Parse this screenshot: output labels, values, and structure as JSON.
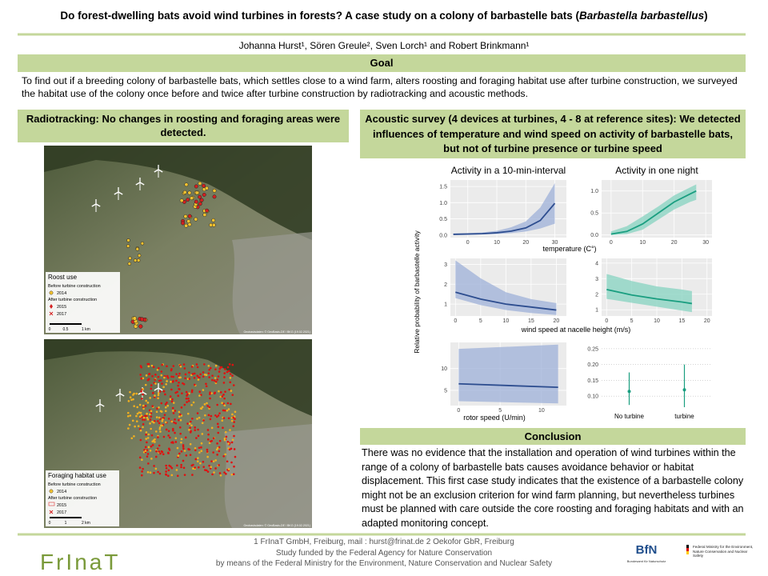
{
  "title": {
    "text": "Do forest-dwelling bats avoid wind turbines in forests? A case study on a colony of barbastelle bats (",
    "species": "Barbastella barbastellus",
    "end": ")"
  },
  "authors": "Johanna Hurst¹, Sören Greule², Sven Lorch¹ and Robert Brinkmann¹",
  "goal": {
    "heading": "Goal",
    "text": "To find out if a breeding colony of barbastelle bats, which settles close to a wind farm, alters roosting and foraging habitat use after turbine construction, we surveyed the habitat use of the colony once before and twice after turbine construction by radiotracking and acoustic methods."
  },
  "radiotracking": {
    "heading": "Radiotracking: No changes in roosting and foraging areas were detected.",
    "maps": [
      {
        "legend_title": "Roost use",
        "before": "Before turbine construction",
        "y2014": "2014",
        "after": "After turbine construction",
        "y2015": "2015",
        "y2017": "2017",
        "scale": [
          "0",
          "0.5",
          "1 km"
        ],
        "credit": "Geobasisdaten: © GeoBasis-DE / BKG (19.02.2021)"
      },
      {
        "legend_title": "Foraging habitat use",
        "before": "Before turbine construction",
        "y2014": "2014",
        "after": "After turbine construction",
        "y2015": "2015",
        "y2017": "2017",
        "scale": [
          "0",
          "1",
          "2 km"
        ],
        "credit": "Geobasisdaten: © GeoBasis-DE / BKG (19.02.2021)"
      }
    ]
  },
  "acoustic": {
    "heading": "Acoustic survey (4 devices at turbines, 4 - 8 at reference sites): We detected influences of temperature and wind speed on activity of barbastelle bats, but not of turbine presence or turbine speed",
    "y_label": "Relative probability of barbastelle activity",
    "x_label_temperature": "temperature (C°)",
    "x_label_wind": "wind speed at nacelle height (m/s)",
    "x_label_rotor": "rotor speed (U/min)",
    "plots": [
      {
        "type": "line",
        "title": "Activity in a 10-min-interval",
        "color": "#2d4d8f",
        "band_color": "#9db0d8",
        "xlim": [
          -6,
          34
        ],
        "ylim": [
          -0.08,
          1.7
        ],
        "xticks": [
          0,
          10,
          20,
          30
        ],
        "yticks": [
          {
            "value": 0,
            "label": "0.0"
          },
          0.5,
          {
            "value": 1,
            "label": "1.0"
          },
          1.5
        ],
        "x": [
          -5,
          0,
          5,
          10,
          15,
          20,
          25,
          30
        ],
        "values": [
          0.02,
          0.03,
          0.04,
          0.07,
          0.12,
          0.22,
          0.45,
          0.98
        ],
        "lower": [
          0.01,
          0.01,
          0.02,
          0.03,
          0.06,
          0.11,
          0.2,
          0.35
        ],
        "upper": [
          0.05,
          0.06,
          0.08,
          0.13,
          0.24,
          0.42,
          0.85,
          1.6
        ]
      },
      {
        "type": "line",
        "title": "Activity in one night",
        "color": "#1a9e80",
        "band_color": "#86d3c0",
        "xlim": [
          -3,
          32
        ],
        "ylim": [
          -0.06,
          1.25
        ],
        "xticks": [
          0,
          10,
          20,
          30
        ],
        "yticks": [
          {
            "value": 0,
            "label": "0.0"
          },
          0.5,
          {
            "value": 1,
            "label": "1.0"
          }
        ],
        "x": [
          0,
          5,
          10,
          15,
          20,
          25,
          27
        ],
        "values": [
          0.02,
          0.08,
          0.25,
          0.5,
          0.75,
          0.93,
          1.0
        ],
        "lower": [
          0.0,
          0.02,
          0.12,
          0.35,
          0.58,
          0.75,
          0.8
        ],
        "upper": [
          0.08,
          0.2,
          0.42,
          0.65,
          0.9,
          1.08,
          1.15
        ]
      },
      {
        "type": "line",
        "color": "#2d4d8f",
        "band_color": "#9db0d8",
        "xlim": [
          -1,
          22
        ],
        "ylim": [
          0.4,
          3.3
        ],
        "xticks": [
          0,
          5,
          10,
          15,
          20
        ],
        "yticks": [
          1,
          2,
          3
        ],
        "x": [
          0,
          5,
          10,
          15,
          20
        ],
        "values": [
          1.6,
          1.25,
          1.0,
          0.85,
          0.7
        ],
        "lower": [
          1.3,
          0.95,
          0.7,
          0.55,
          0.45
        ],
        "upper": [
          3.2,
          2.3,
          1.6,
          1.25,
          1.05
        ]
      },
      {
        "type": "line",
        "color": "#1a9e80",
        "band_color": "#86d3c0",
        "xlim": [
          -1,
          21
        ],
        "ylim": [
          0.6,
          4.3
        ],
        "xticks": [
          0,
          5,
          10,
          15,
          20
        ],
        "yticks": [
          1,
          2,
          3,
          4
        ],
        "x": [
          0,
          5,
          10,
          15,
          17
        ],
        "values": [
          2.3,
          1.95,
          1.7,
          1.5,
          1.4
        ],
        "lower": [
          1.7,
          1.45,
          1.2,
          0.95,
          0.85
        ],
        "upper": [
          3.3,
          2.85,
          2.5,
          2.3,
          2.2
        ]
      },
      {
        "type": "line",
        "color": "#2d4d8f",
        "band_color": "#9db0d8",
        "xlim": [
          -1,
          13
        ],
        "ylim": [
          1.5,
          16
        ],
        "xticks": [
          0,
          5,
          10
        ],
        "yticks": [
          5,
          10
        ],
        "x": [
          0,
          12
        ],
        "values": [
          6.5,
          5.7
        ],
        "lower": [
          2.5,
          2.0
        ],
        "upper": [
          14.5,
          15.5
        ]
      },
      {
        "type": "errorbar",
        "color": "#1a9e80",
        "ylim": [
          0.07,
          0.27
        ],
        "yticks": [
          {
            "value": 0.1,
            "label": "0.10"
          },
          0.15,
          {
            "value": 0.2,
            "label": "0.20"
          },
          0.25
        ],
        "categories": [
          "No turbine",
          "turbine"
        ],
        "values": [
          0.115,
          0.12
        ],
        "lower": [
          0.072,
          0.065
        ],
        "upper": [
          0.175,
          0.2
        ]
      }
    ]
  },
  "conclusion": {
    "heading": "Conclusion",
    "text": "There was  no evidence that the installation and operation of wind turbines within the range of a colony of barbastelle bats causes avoidance behavior or habitat displacement. This first case study indicates that the existence of a barbastelle colony might not be an exclusion criterion for wind farm planning, but nevertheless turbines must be planned with care outside the core roosting and foraging habitats and with an adapted monitoring concept."
  },
  "footer": {
    "affiliations": "1 FrInaT GmbH, Freiburg, mail : hurst@frinat.de 2 Oekofor GbR, Freiburg",
    "funding_1": "Study funded by the Federal Agency for Nature Conservation",
    "funding_2": "by means of the Federal Ministry for the Environment, Nature Conservation and Nuclear Safety"
  },
  "logos": {
    "frinat": "FrInaT",
    "bfn": "BfN",
    "bfn_sub": "Bundesamt für Naturschutz",
    "bmu": "Federal Ministry for the Environment, Nature Conservation and Nuclear Safety"
  }
}
